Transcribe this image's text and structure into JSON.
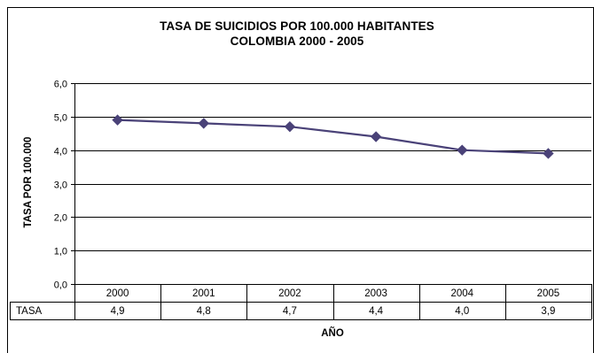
{
  "chart_data": {
    "type": "line",
    "title": "TASA DE SUICIDIOS POR 100.000 HABITANTES",
    "subtitle": "COLOMBIA 2000 - 2005",
    "xlabel": "AÑO",
    "ylabel": "TASA POR 100.000",
    "categories": [
      "2000",
      "2001",
      "2002",
      "2003",
      "2004",
      "2005"
    ],
    "series": [
      {
        "name": "TASA",
        "values": [
          4.9,
          4.8,
          4.7,
          4.4,
          4.0,
          3.9
        ],
        "labels": [
          "4,9",
          "4,8",
          "4,7",
          "4,4",
          "4,0",
          "3,9"
        ]
      }
    ],
    "ylim": [
      0,
      6
    ],
    "yticks": [
      0,
      1,
      2,
      3,
      4,
      5,
      6
    ],
    "ytick_labels": [
      "0,0",
      "1,0",
      "2,0",
      "3,0",
      "4,0",
      "5,0",
      "6,0"
    ],
    "grid": true,
    "legend": "data-table",
    "line_color": "#4a4278",
    "marker": "diamond"
  }
}
